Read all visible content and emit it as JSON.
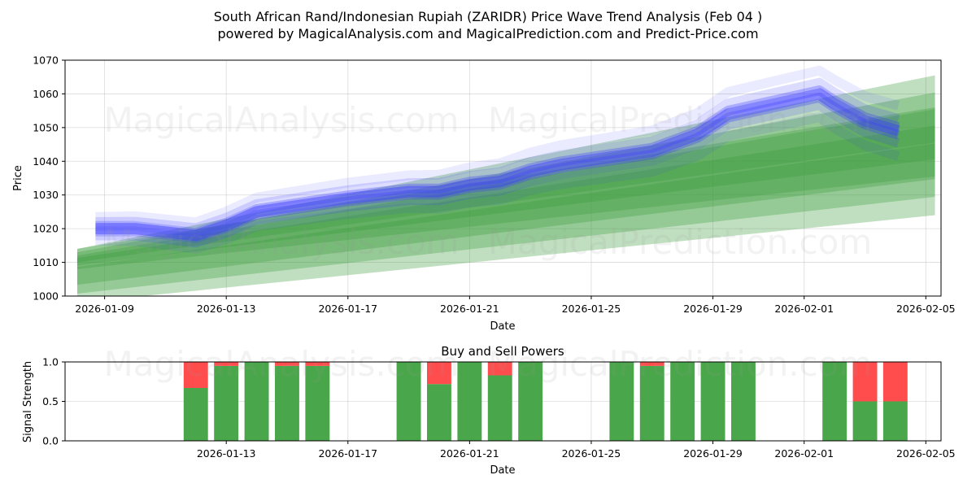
{
  "title": {
    "line1": "South African Rand/Indonesian Rupiah (ZARIDR) Price Wave Trend Analysis (Feb 04 )",
    "line2": "powered by MagicalAnalysis.com and MagicalPrediction.com and Predict-Price.com"
  },
  "watermarks": [
    "MagicalAnalysis.com",
    "MagicalPrediction.com"
  ],
  "colors": {
    "blue": "#3b3bff",
    "green": "#3a9a3a",
    "buy": "#4aa64a",
    "sell": "#ff4d4d"
  },
  "chart_data": [
    {
      "type": "area",
      "name": "price-wave-trend",
      "xlabel": "Date",
      "ylabel": "Price",
      "ylim": [
        1000,
        1070
      ],
      "yticks": [
        1000,
        1010,
        1020,
        1030,
        1040,
        1050,
        1060,
        1070
      ],
      "xlim_days": [
        -1.3,
        27.5
      ],
      "xticks": [
        {
          "day": 0,
          "label": "2026-01-09"
        },
        {
          "day": 4,
          "label": "2026-01-13"
        },
        {
          "day": 8,
          "label": "2026-01-17"
        },
        {
          "day": 12,
          "label": "2026-01-21"
        },
        {
          "day": 16,
          "label": "2026-01-25"
        },
        {
          "day": 20,
          "label": "2026-01-29"
        },
        {
          "day": 23,
          "label": "2026-02-01"
        },
        {
          "day": 27,
          "label": "2026-02-05"
        }
      ],
      "grid": true,
      "blue_center": [
        {
          "x": -0.3,
          "y": 1020
        },
        {
          "x": 1,
          "y": 1020
        },
        {
          "x": 3,
          "y": 1018
        },
        {
          "x": 4,
          "y": 1021
        },
        {
          "x": 5,
          "y": 1025
        },
        {
          "x": 6.5,
          "y": 1027
        },
        {
          "x": 8,
          "y": 1029
        },
        {
          "x": 10,
          "y": 1031
        },
        {
          "x": 11,
          "y": 1031
        },
        {
          "x": 12,
          "y": 1033
        },
        {
          "x": 13,
          "y": 1034
        },
        {
          "x": 14,
          "y": 1037
        },
        {
          "x": 15,
          "y": 1039
        },
        {
          "x": 16.5,
          "y": 1041
        },
        {
          "x": 18,
          "y": 1043
        },
        {
          "x": 19.5,
          "y": 1048
        },
        {
          "x": 20.5,
          "y": 1054
        },
        {
          "x": 22,
          "y": 1057
        },
        {
          "x": 23.5,
          "y": 1060
        },
        {
          "x": 24,
          "y": 1057
        },
        {
          "x": 25,
          "y": 1052
        },
        {
          "x": 26.1,
          "y": 1049
        }
      ],
      "green_bands": [
        {
          "start": [
            -0.9,
            1011
          ],
          "end": [
            27.3,
            1050.5
          ],
          "half_width_start": 3,
          "half_width_end": 15
        },
        {
          "start": [
            -0.9,
            1006
          ],
          "end": [
            27.3,
            1040
          ],
          "half_width_start": 8,
          "half_width_end": 16
        }
      ]
    },
    {
      "type": "bar",
      "name": "buy-and-sell-powers",
      "title": "Buy and Sell Powers",
      "xlabel": "Date",
      "ylabel": "Signal Strength",
      "ylim": [
        0,
        1.0
      ],
      "yticks": [
        0.0,
        0.5,
        1.0
      ],
      "xlim_days": [
        -1.3,
        27.5
      ],
      "xticks": [
        {
          "day": 4,
          "label": "2026-01-13"
        },
        {
          "day": 8,
          "label": "2026-01-17"
        },
        {
          "day": 12,
          "label": "2026-01-21"
        },
        {
          "day": 16,
          "label": "2026-01-25"
        },
        {
          "day": 20,
          "label": "2026-01-29"
        },
        {
          "day": 23,
          "label": "2026-02-01"
        },
        {
          "day": 27,
          "label": "2026-02-05"
        }
      ],
      "bars": [
        {
          "day": 3,
          "buy": 0.67,
          "sell": 0.33
        },
        {
          "day": 4,
          "buy": 0.95,
          "sell": 0.05
        },
        {
          "day": 5,
          "buy": 1.0,
          "sell": 0.0
        },
        {
          "day": 6,
          "buy": 0.95,
          "sell": 0.05
        },
        {
          "day": 7,
          "buy": 0.95,
          "sell": 0.05
        },
        {
          "day": 10,
          "buy": 1.0,
          "sell": 0.0
        },
        {
          "day": 11,
          "buy": 0.72,
          "sell": 0.28
        },
        {
          "day": 12,
          "buy": 1.0,
          "sell": 0.0
        },
        {
          "day": 13,
          "buy": 0.83,
          "sell": 0.17
        },
        {
          "day": 14,
          "buy": 1.0,
          "sell": 0.0
        },
        {
          "day": 17,
          "buy": 1.0,
          "sell": 0.0
        },
        {
          "day": 18,
          "buy": 0.95,
          "sell": 0.05
        },
        {
          "day": 19,
          "buy": 1.0,
          "sell": 0.0
        },
        {
          "day": 20,
          "buy": 1.0,
          "sell": 0.0
        },
        {
          "day": 21,
          "buy": 1.0,
          "sell": 0.0
        },
        {
          "day": 24,
          "buy": 1.0,
          "sell": 0.0
        },
        {
          "day": 25,
          "buy": 0.5,
          "sell": 0.5
        },
        {
          "day": 26,
          "buy": 0.5,
          "sell": 0.5
        }
      ]
    }
  ]
}
